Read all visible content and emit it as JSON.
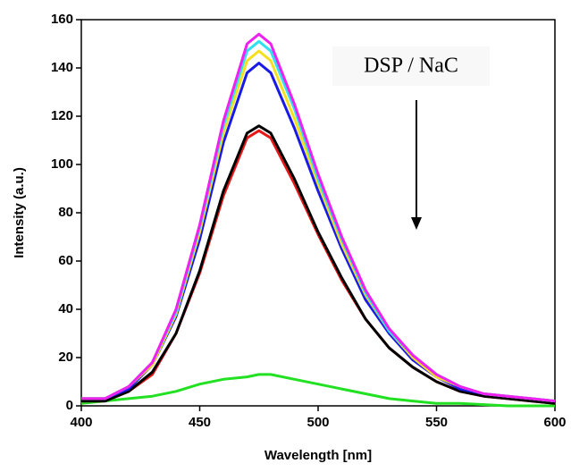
{
  "chart_data": {
    "type": "line",
    "x_label": "Wavelength  [nm]",
    "y_label": "Intensity (a.u.)",
    "annotation": "DSP / NaC",
    "x": [
      400,
      410,
      420,
      430,
      440,
      450,
      460,
      470,
      475,
      480,
      490,
      500,
      510,
      520,
      530,
      540,
      550,
      560,
      570,
      580,
      590,
      600
    ],
    "series": [
      {
        "color": "#22e022",
        "values": [
          1,
          2,
          3,
          4,
          6,
          9,
          11,
          12,
          13,
          13,
          11,
          9,
          7,
          5,
          3,
          2,
          1,
          1,
          0.5,
          0,
          0,
          0
        ]
      },
      {
        "color": "#e81818",
        "values": [
          2,
          2,
          6,
          13,
          30,
          55,
          87,
          111,
          114,
          111,
          92,
          71,
          52,
          36,
          24,
          16,
          10,
          6,
          4,
          3,
          2,
          1
        ]
      },
      {
        "color": "#000000",
        "values": [
          2,
          2,
          6,
          14,
          30,
          56,
          89,
          113,
          116,
          113,
          94,
          72,
          53,
          36,
          24,
          16,
          10,
          6,
          4,
          3,
          2,
          1
        ]
      },
      {
        "color": "#1a1ae8",
        "values": [
          3,
          3,
          7,
          17,
          37,
          69,
          109,
          138,
          142,
          138,
          115,
          89,
          65,
          44,
          30,
          19,
          12,
          7,
          5,
          4,
          3,
          2
        ]
      },
      {
        "color": "#f5e020",
        "values": [
          3,
          3,
          8,
          17,
          38,
          72,
          113,
          143,
          147,
          143,
          119,
          92,
          67,
          46,
          31,
          20,
          12,
          8,
          5,
          4,
          3,
          2
        ]
      },
      {
        "color": "#30e0f0",
        "values": [
          3,
          3,
          8,
          18,
          39,
          74,
          116,
          147,
          151,
          147,
          123,
          94,
          69,
          47,
          31,
          21,
          13,
          8,
          5,
          4,
          3,
          2
        ]
      },
      {
        "color": "#f020f0",
        "values": [
          3,
          3,
          8,
          18,
          40,
          75,
          118,
          150,
          154,
          150,
          125,
          96,
          70,
          48,
          32,
          21,
          13,
          8,
          5,
          4,
          3,
          2
        ]
      }
    ],
    "xlim": [
      400,
      600
    ],
    "xticks": [
      400,
      450,
      500,
      550,
      600
    ],
    "ylim": [
      0,
      160
    ],
    "yticks": [
      0,
      20,
      40,
      60,
      80,
      100,
      120,
      140,
      160
    ]
  }
}
